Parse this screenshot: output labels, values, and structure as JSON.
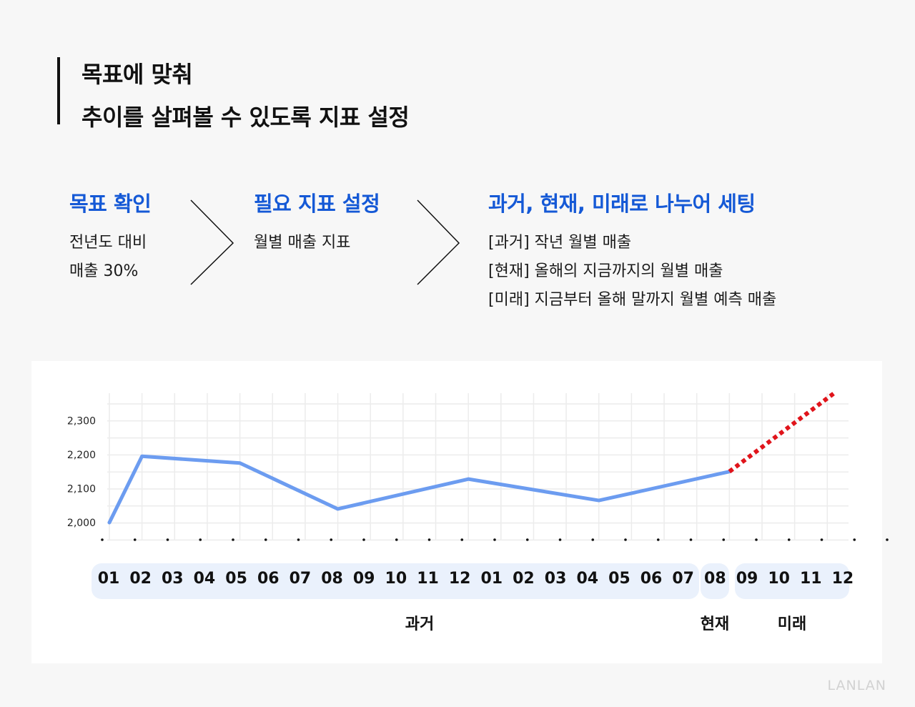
{
  "heading": {
    "line1": "목표에 맞춰",
    "line2": "추이를 살펴볼 수 있도록 지표 설정"
  },
  "steps": [
    {
      "title": "목표 확인",
      "lines": [
        "전년도 대비",
        "매출 30%"
      ]
    },
    {
      "title": "필요 지표 설정",
      "lines": [
        "월별 매출 지표"
      ]
    },
    {
      "title": "과거, 현재, 미래로 나누어 세팅",
      "lines": [
        "[과거] 작년 월별 매출",
        "[현재] 올해의 지금까지의 월별 매출",
        "[미래] 지금부터 올해 말까지 월별 예측 매출"
      ]
    }
  ],
  "chart_data": {
    "type": "line",
    "categories": [
      "01",
      "02",
      "03",
      "04",
      "05",
      "06",
      "07",
      "08",
      "09",
      "10",
      "11",
      "12",
      "01",
      "02",
      "03",
      "04",
      "05",
      "06",
      "07",
      "08",
      "09",
      "10",
      "11",
      "12"
    ],
    "series": [
      {
        "style": "solid",
        "color": "#6c9cf0",
        "points": [
          [
            0,
            2000
          ],
          [
            1,
            2195
          ],
          [
            4,
            2175
          ],
          [
            7,
            2040
          ],
          [
            11,
            2128
          ],
          [
            15,
            2065
          ],
          [
            19,
            2150
          ]
        ]
      },
      {
        "style": "dotted",
        "color": "#e0141b",
        "points": [
          [
            19,
            2150
          ],
          [
            22.2,
            2380
          ]
        ]
      }
    ],
    "yticks": [
      2000,
      2100,
      2200,
      2300
    ],
    "ytick_labels": [
      "2,000",
      "2,100",
      "2,200",
      "2,300"
    ],
    "ylim": [
      1950,
      2400
    ],
    "grid": true,
    "periods": [
      {
        "label": "과거",
        "from": 0,
        "to": 18
      },
      {
        "label": "현재",
        "from": 19,
        "to": 19
      },
      {
        "label": "미래",
        "from": 20,
        "to": 23
      }
    ]
  },
  "watermark": "LANLAN"
}
